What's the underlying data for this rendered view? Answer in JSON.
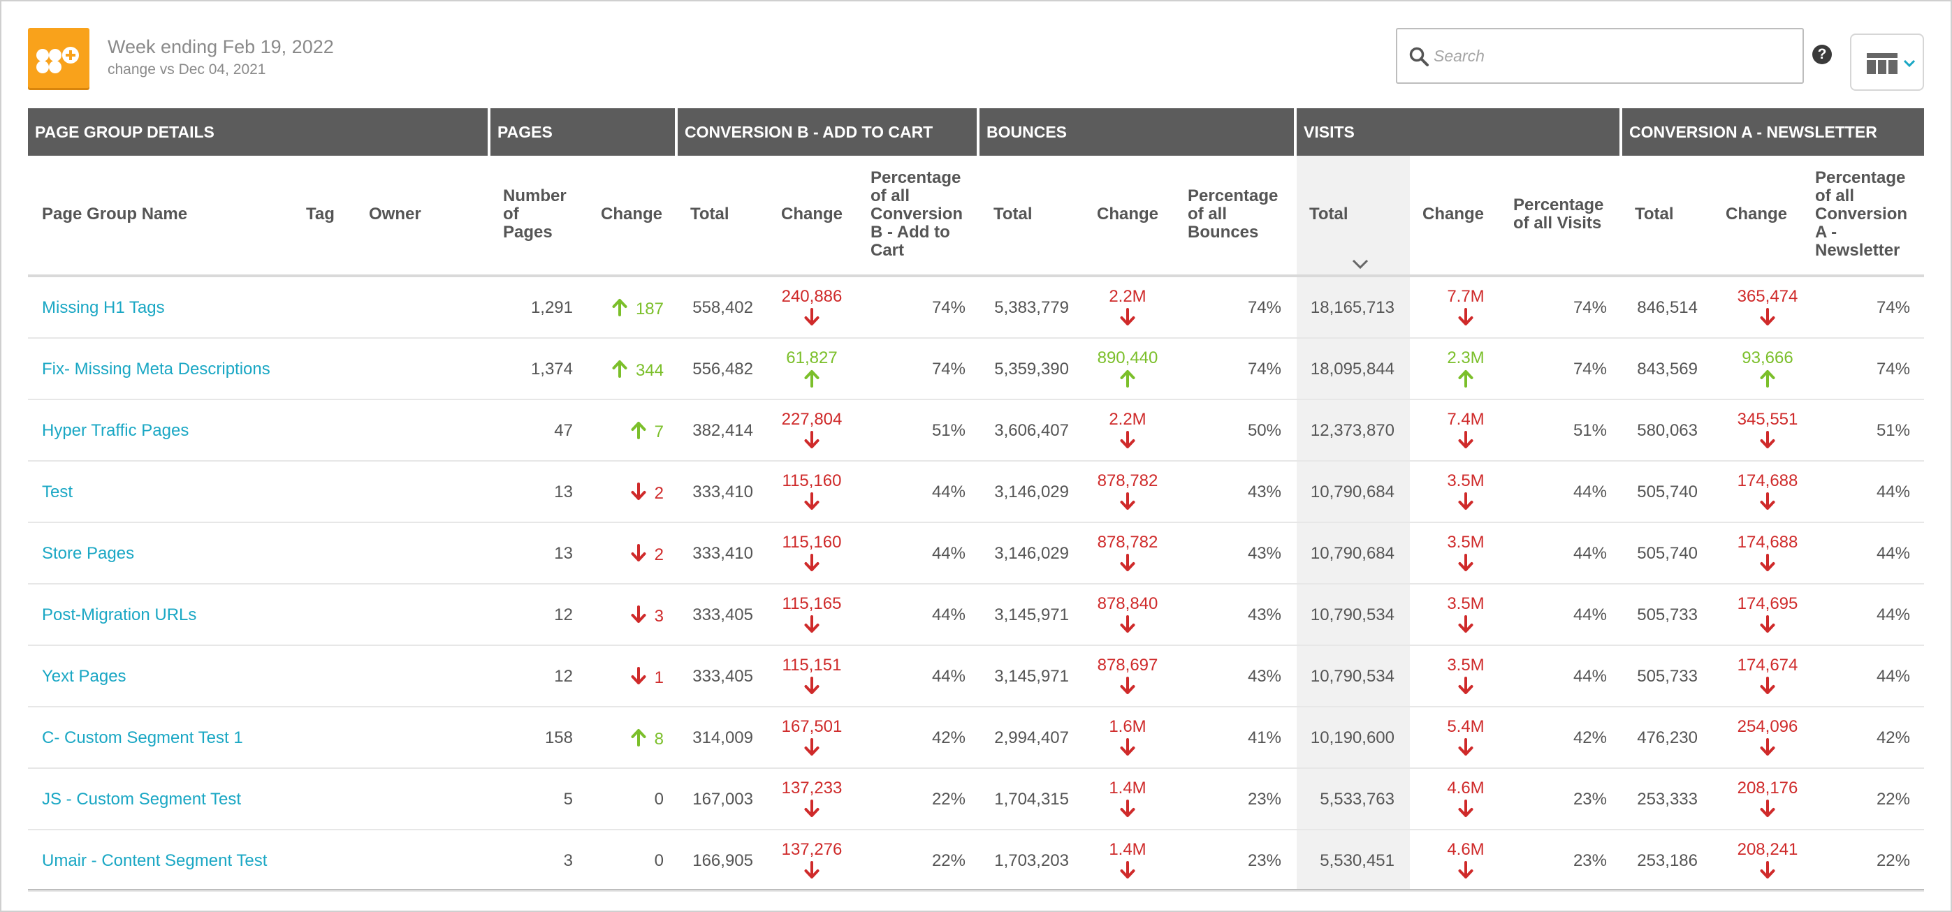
{
  "header": {
    "title": "Week ending Feb 19, 2022",
    "subtitle": "change vs Dec 04, 2021"
  },
  "search": {
    "placeholder": "Search",
    "value": ""
  },
  "help": {
    "label": "?"
  },
  "colors": {
    "accent": "#f9a21b",
    "link": "#1aa7c4",
    "up": "#7bbf2a",
    "down": "#cf2a2a",
    "header_bg": "#5c5c5c"
  },
  "groups": [
    "PAGE GROUP DETAILS",
    "PAGES",
    "CONVERSION B - ADD TO CART",
    "BOUNCES",
    "VISITS",
    "CONVERSION A - NEWSLETTER"
  ],
  "columns": {
    "name": "Page Group Name",
    "tag": "Tag",
    "owner": "Owner",
    "num_pages": [
      "Number",
      "of",
      "Pages"
    ],
    "pages_change": "Change",
    "convb_total": "Total",
    "convb_change": "Change",
    "convb_pct": [
      "Percentage",
      "of all",
      "Conversion",
      "B - Add to",
      "Cart"
    ],
    "bounces_total": "Total",
    "bounces_change": "Change",
    "bounces_pct": [
      "Percentage",
      "of all",
      "Bounces"
    ],
    "visits_total": "Total",
    "visits_change": "Change",
    "visits_pct": [
      "Percentage",
      "of all Visits"
    ],
    "conva_total": "Total",
    "conva_change": "Change",
    "conva_pct": [
      "Percentage",
      "of all",
      "Conversion",
      "A -",
      "Newsletter"
    ]
  },
  "rows": [
    {
      "name": "Missing H1 Tags",
      "pages": "1,291",
      "pages_change": "187",
      "pages_dir": "up",
      "convb_total": "558,402",
      "convb_change": "240,886",
      "convb_dir": "down",
      "convb_pct": "74%",
      "bounces_total": "5,383,779",
      "bounces_change": "2.2M",
      "bounces_dir": "down",
      "bounces_pct": "74%",
      "visits_total": "18,165,713",
      "visits_change": "7.7M",
      "visits_dir": "down",
      "visits_pct": "74%",
      "conva_total": "846,514",
      "conva_change": "365,474",
      "conva_dir": "down",
      "conva_pct": "74%"
    },
    {
      "name": "Fix- Missing Meta Descriptions",
      "pages": "1,374",
      "pages_change": "344",
      "pages_dir": "up",
      "convb_total": "556,482",
      "convb_change": "61,827",
      "convb_dir": "up",
      "convb_pct": "74%",
      "bounces_total": "5,359,390",
      "bounces_change": "890,440",
      "bounces_dir": "up",
      "bounces_pct": "74%",
      "visits_total": "18,095,844",
      "visits_change": "2.3M",
      "visits_dir": "up",
      "visits_pct": "74%",
      "conva_total": "843,569",
      "conva_change": "93,666",
      "conva_dir": "up",
      "conva_pct": "74%"
    },
    {
      "name": "Hyper Traffic Pages",
      "pages": "47",
      "pages_change": "7",
      "pages_dir": "up",
      "convb_total": "382,414",
      "convb_change": "227,804",
      "convb_dir": "down",
      "convb_pct": "51%",
      "bounces_total": "3,606,407",
      "bounces_change": "2.2M",
      "bounces_dir": "down",
      "bounces_pct": "50%",
      "visits_total": "12,373,870",
      "visits_change": "7.4M",
      "visits_dir": "down",
      "visits_pct": "51%",
      "conva_total": "580,063",
      "conva_change": "345,551",
      "conva_dir": "down",
      "conva_pct": "51%"
    },
    {
      "name": "Test",
      "pages": "13",
      "pages_change": "2",
      "pages_dir": "down",
      "convb_total": "333,410",
      "convb_change": "115,160",
      "convb_dir": "down",
      "convb_pct": "44%",
      "bounces_total": "3,146,029",
      "bounces_change": "878,782",
      "bounces_dir": "down",
      "bounces_pct": "43%",
      "visits_total": "10,790,684",
      "visits_change": "3.5M",
      "visits_dir": "down",
      "visits_pct": "44%",
      "conva_total": "505,740",
      "conva_change": "174,688",
      "conva_dir": "down",
      "conva_pct": "44%"
    },
    {
      "name": "Store Pages",
      "pages": "13",
      "pages_change": "2",
      "pages_dir": "down",
      "convb_total": "333,410",
      "convb_change": "115,160",
      "convb_dir": "down",
      "convb_pct": "44%",
      "bounces_total": "3,146,029",
      "bounces_change": "878,782",
      "bounces_dir": "down",
      "bounces_pct": "43%",
      "visits_total": "10,790,684",
      "visits_change": "3.5M",
      "visits_dir": "down",
      "visits_pct": "44%",
      "conva_total": "505,740",
      "conva_change": "174,688",
      "conva_dir": "down",
      "conva_pct": "44%"
    },
    {
      "name": "Post-Migration URLs",
      "pages": "12",
      "pages_change": "3",
      "pages_dir": "down",
      "convb_total": "333,405",
      "convb_change": "115,165",
      "convb_dir": "down",
      "convb_pct": "44%",
      "bounces_total": "3,145,971",
      "bounces_change": "878,840",
      "bounces_dir": "down",
      "bounces_pct": "43%",
      "visits_total": "10,790,534",
      "visits_change": "3.5M",
      "visits_dir": "down",
      "visits_pct": "44%",
      "conva_total": "505,733",
      "conva_change": "174,695",
      "conva_dir": "down",
      "conva_pct": "44%"
    },
    {
      "name": "Yext Pages",
      "pages": "12",
      "pages_change": "1",
      "pages_dir": "down",
      "convb_total": "333,405",
      "convb_change": "115,151",
      "convb_dir": "down",
      "convb_pct": "44%",
      "bounces_total": "3,145,971",
      "bounces_change": "878,697",
      "bounces_dir": "down",
      "bounces_pct": "43%",
      "visits_total": "10,790,534",
      "visits_change": "3.5M",
      "visits_dir": "down",
      "visits_pct": "44%",
      "conva_total": "505,733",
      "conva_change": "174,674",
      "conva_dir": "down",
      "conva_pct": "44%"
    },
    {
      "name": "C- Custom Segment Test 1",
      "pages": "158",
      "pages_change": "8",
      "pages_dir": "up",
      "convb_total": "314,009",
      "convb_change": "167,501",
      "convb_dir": "down",
      "convb_pct": "42%",
      "bounces_total": "2,994,407",
      "bounces_change": "1.6M",
      "bounces_dir": "down",
      "bounces_pct": "41%",
      "visits_total": "10,190,600",
      "visits_change": "5.4M",
      "visits_dir": "down",
      "visits_pct": "42%",
      "conva_total": "476,230",
      "conva_change": "254,096",
      "conva_dir": "down",
      "conva_pct": "42%"
    },
    {
      "name": "JS - Custom Segment Test",
      "pages": "5",
      "pages_change": "0",
      "pages_dir": "none",
      "convb_total": "167,003",
      "convb_change": "137,233",
      "convb_dir": "down",
      "convb_pct": "22%",
      "bounces_total": "1,704,315",
      "bounces_change": "1.4M",
      "bounces_dir": "down",
      "bounces_pct": "23%",
      "visits_total": "5,533,763",
      "visits_change": "4.6M",
      "visits_dir": "down",
      "visits_pct": "23%",
      "conva_total": "253,333",
      "conva_change": "208,176",
      "conva_dir": "down",
      "conva_pct": "22%"
    },
    {
      "name": "Umair - Content Segment Test",
      "pages": "3",
      "pages_change": "0",
      "pages_dir": "none",
      "convb_total": "166,905",
      "convb_change": "137,276",
      "convb_dir": "down",
      "convb_pct": "22%",
      "bounces_total": "1,703,203",
      "bounces_change": "1.4M",
      "bounces_dir": "down",
      "bounces_pct": "23%",
      "visits_total": "5,530,451",
      "visits_change": "4.6M",
      "visits_dir": "down",
      "visits_pct": "23%",
      "conva_total": "253,186",
      "conva_change": "208,241",
      "conva_dir": "down",
      "conva_pct": "22%"
    }
  ]
}
